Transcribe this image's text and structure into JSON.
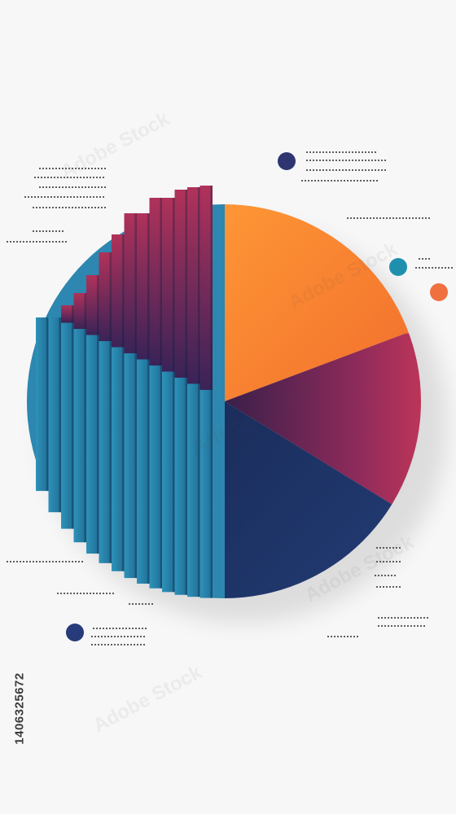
{
  "stock_id": "1406325672",
  "watermark": {
    "logo": "watermark-logo",
    "text": "Adobe Stock"
  },
  "colors": {
    "background": "#f7f7f8",
    "orange": "#ff8a2a",
    "orange_light": "#ffa040",
    "crimson": "#c8325a",
    "plum": "#4e2352",
    "navy": "#1f3568",
    "teal": "#2a87b0",
    "blue_dot": "#2e3a78",
    "teal_dot": "#1f8fae",
    "orange_dot": "#f07040",
    "placeholder_text": "#2b2b2b"
  },
  "icons": [
    "pie-chart-illustration",
    "dot-marker",
    "placeholder-text-line"
  ]
}
